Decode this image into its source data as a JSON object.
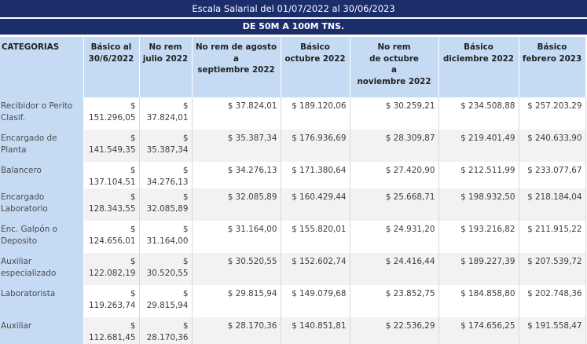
{
  "title": "Escala Salarial del 01/07/2022 al 30/06/2023",
  "subtitle": "DE 50M A 100M TNS.",
  "columns": [
    "CATEGORIAS",
    "Básico al\n30/6/2022",
    "No rem\njulio 2022",
    "No rem de agosto\na\nseptiembre 2022",
    "Básico\noctubre 2022",
    "No rem\nde octubre\na\nnoviembre 2022",
    "Básico\ndiciembre 2022",
    "Básico\nfebrero 2023"
  ],
  "rows": [
    {
      "cat": "Recibidor o Perito Clasif.",
      "basico_jun": "$ 151.296,05",
      "norem_jul": "$ 37.824,01",
      "norem_ago_sep": "$ 37.824,01",
      "basico_oct": "$ 189.120,06",
      "norem_oct_nov": "$ 30.259,21",
      "basico_dic": "$ 234.508,88",
      "basico_feb": "$ 257.203,29"
    },
    {
      "cat": "Encargado de Planta",
      "basico_jun": "$ 141.549,35",
      "norem_jul": "$ 35.387,34",
      "norem_ago_sep": "$ 35.387,34",
      "basico_oct": "$ 176.936,69",
      "norem_oct_nov": "$ 28.309,87",
      "basico_dic": "$ 219.401,49",
      "basico_feb": "$ 240.633,90"
    },
    {
      "cat": "Balancero",
      "basico_jun": "$ 137.104,51",
      "norem_jul": "$ 34.276,13",
      "norem_ago_sep": "$ 34.276,13",
      "basico_oct": "$ 171.380,64",
      "norem_oct_nov": "$ 27.420,90",
      "basico_dic": "$ 212.511,99",
      "basico_feb": "$ 233.077,67"
    },
    {
      "cat": "Encargado Laboratorio",
      "basico_jun": "$ 128.343,55",
      "norem_jul": "$ 32.085,89",
      "norem_ago_sep": "$ 32.085,89",
      "basico_oct": "$ 160.429,44",
      "norem_oct_nov": "$ 25.668,71",
      "basico_dic": "$ 198.932,50",
      "basico_feb": "$ 218.184,04"
    },
    {
      "cat": "Enc. Galpón o Deposito",
      "basico_jun": "$ 124.656,01",
      "norem_jul": "$ 31.164,00",
      "norem_ago_sep": "$ 31.164,00",
      "basico_oct": "$ 155.820,01",
      "norem_oct_nov": "$ 24.931,20",
      "basico_dic": "$ 193.216,82",
      "basico_feb": "$ 211.915,22"
    },
    {
      "cat": "Auxiliar especializado",
      "basico_jun": "$ 122.082,19",
      "norem_jul": "$ 30.520,55",
      "norem_ago_sep": "$ 30.520,55",
      "basico_oct": "$ 152.602,74",
      "norem_oct_nov": "$ 24.416,44",
      "basico_dic": "$ 189.227,39",
      "basico_feb": "$ 207.539,72"
    },
    {
      "cat": "Laboratorista",
      "basico_jun": "$ 119.263,74",
      "norem_jul": "$ 29.815,94",
      "norem_ago_sep": "$ 29.815,94",
      "basico_oct": "$ 149.079,68",
      "norem_oct_nov": "$ 23.852,75",
      "basico_dic": "$ 184.858,80",
      "basico_feb": "$ 202.748,36"
    },
    {
      "cat": "Auxiliar",
      "basico_jun": "$ 112.681,45",
      "norem_jul": "$ 28.170,36",
      "norem_ago_sep": "$ 28.170,36",
      "basico_oct": "$ 140.851,81",
      "norem_oct_nov": "$ 22.536,29",
      "basico_dic": "$ 174.656,25",
      "basico_feb": "$ 191.558,47"
    }
  ]
}
